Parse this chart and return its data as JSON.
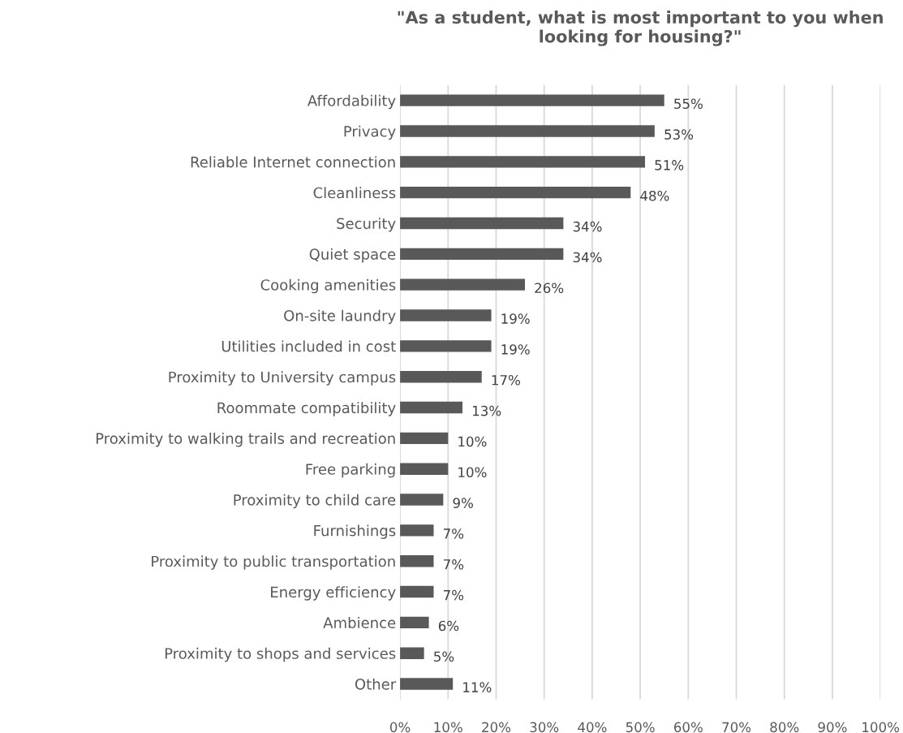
{
  "chart_data": {
    "type": "bar",
    "orientation": "horizontal",
    "title": "\"As a student, what is most important to you when looking for housing?\"",
    "categories": [
      "Affordability",
      "Privacy",
      "Reliable Internet connection",
      "Cleanliness",
      "Security",
      "Quiet space",
      "Cooking amenities",
      "On-site laundry",
      "Utilities included in cost",
      "Proximity to University campus",
      "Roommate compatibility",
      "Proximity to walking trails and recreation",
      "Free parking",
      "Proximity to child care",
      "Furnishings",
      "Proximity to public transportation",
      "Energy efficiency",
      "Ambience",
      "Proximity to shops and services",
      "Other"
    ],
    "values": [
      55,
      53,
      51,
      48,
      34,
      34,
      26,
      19,
      19,
      17,
      13,
      10,
      10,
      9,
      7,
      7,
      7,
      6,
      5,
      11
    ],
    "value_labels": [
      "55%",
      "53%",
      "51%",
      "48%",
      "34%",
      "34%",
      "26%",
      "19%",
      "19%",
      "17%",
      "13%",
      "10%",
      "10%",
      "9%",
      "7%",
      "7%",
      "7%",
      "6%",
      "5%",
      "11%"
    ],
    "color": "#595959",
    "xlim": [
      0,
      100
    ],
    "xticks": [
      {
        "value": 0,
        "label": "0%"
      },
      {
        "value": 10,
        "label": "10%"
      },
      {
        "value": 20,
        "label": "20%"
      },
      {
        "value": 30,
        "label": "30%"
      },
      {
        "value": 40,
        "label": "40%"
      },
      {
        "value": 50,
        "label": "50%"
      },
      {
        "value": 60,
        "label": "60%"
      },
      {
        "value": 70,
        "label": "70%"
      },
      {
        "value": 80,
        "label": "80%"
      },
      {
        "value": 90,
        "label": "90%"
      },
      {
        "value": 100,
        "label": "100%"
      }
    ],
    "grid": "x",
    "legend": false
  }
}
